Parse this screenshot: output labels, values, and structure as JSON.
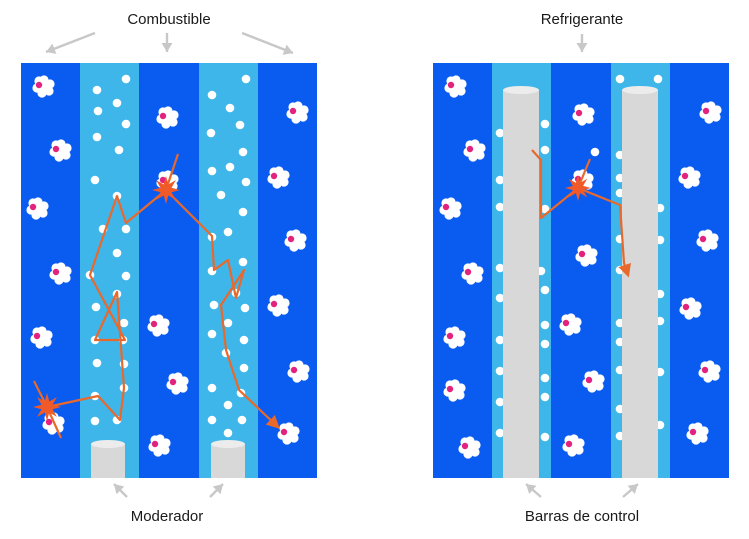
{
  "labels": {
    "fuel": "Combustible",
    "moderator": "Moderador",
    "coolant": "Refrigerante",
    "control_rods": "Barras de control"
  },
  "colors": {
    "fuel_blue": "#0a5cf0",
    "moderator_light_blue": "#3fb6ea",
    "rod_gray": "#d8d8d8",
    "neutron_path": "#e8692b",
    "fission_star": "#f05a28",
    "nucleus_accent": "#e2237d",
    "arrow_gray": "#c8c8c8",
    "text": "#1a1a1a"
  },
  "icons": [
    "uranium-nucleus-icon",
    "neutron-dot-icon",
    "fission-star-icon",
    "pointer-arrow-icon"
  ]
}
